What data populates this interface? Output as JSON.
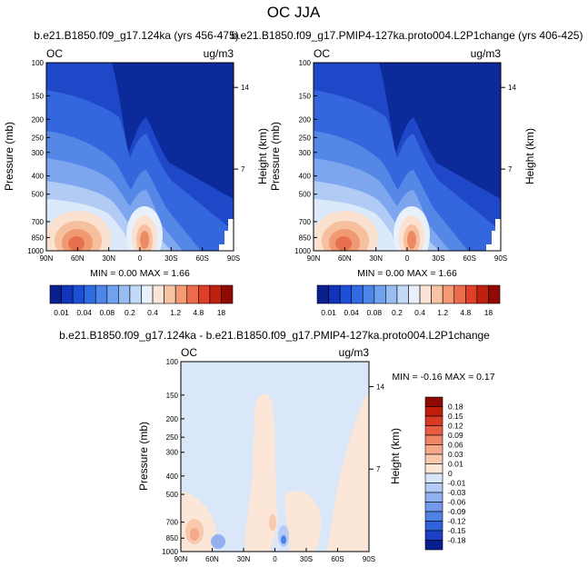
{
  "page_title": "OC JJA",
  "charts": {
    "left": {
      "title": "b.e21.B1850.f09_g17.124ka (yrs 456-475)",
      "variable": "OC",
      "units": "ug/m3",
      "ylabel": "Pressure (mb)",
      "y2label": "Height (km)",
      "minmax": "MIN =   0.00   MAX =   1.66"
    },
    "right": {
      "title": "b.e21.B1850.f09_g17.PMIP4-127ka.proto004.L2P1change (yrs 406-425)",
      "variable": "OC",
      "units": "ug/m3",
      "ylabel": "Pressure (mb)",
      "y2label": "Height (km)",
      "minmax": "MIN =   0.00   MAX =   1.66"
    },
    "diff": {
      "title": "b.e21.B1850.f09_g17.124ka - b.e21.B1850.f09_g17.PMIP4-127ka.proto004.L2P1change",
      "variable": "OC",
      "units": "ug/m3",
      "ylabel": "Pressure (mb)",
      "y2label": "Height (km)",
      "minmax": "MIN =  -0.16   MAX =   0.17"
    }
  },
  "chart_data": [
    {
      "type": "contour",
      "panel": "left",
      "x_ticks": [
        "90N",
        "60N",
        "30N",
        "0",
        "30S",
        "60S",
        "90S"
      ],
      "y_ticks": [
        100,
        150,
        200,
        250,
        300,
        400,
        500,
        700,
        850,
        1000
      ],
      "y2_ticks": [
        14,
        7
      ],
      "ylim": [
        1000,
        100
      ],
      "min": 0.0,
      "max": 1.66
    },
    {
      "type": "contour",
      "panel": "right",
      "x_ticks": [
        "90N",
        "60N",
        "30N",
        "0",
        "30S",
        "60S",
        "90S"
      ],
      "y_ticks": [
        100,
        150,
        200,
        250,
        300,
        400,
        500,
        700,
        850,
        1000
      ],
      "y2_ticks": [
        14,
        7
      ],
      "ylim": [
        1000,
        100
      ],
      "min": 0.0,
      "max": 1.66
    },
    {
      "type": "contour",
      "panel": "diff",
      "x_ticks": [
        "90N",
        "60N",
        "30N",
        "0",
        "30S",
        "60S",
        "90S"
      ],
      "y_ticks": [
        100,
        150,
        200,
        250,
        300,
        400,
        500,
        700,
        850,
        1000
      ],
      "y2_ticks": [
        14,
        7
      ],
      "ylim": [
        1000,
        100
      ],
      "min": -0.16,
      "max": 0.17
    }
  ],
  "colorbar_top": {
    "colors": [
      "#0a1f8f",
      "#1234b8",
      "#1a4fd6",
      "#2f6be2",
      "#4c86ea",
      "#6fa1ef",
      "#98bdf4",
      "#c3d9f8",
      "#e8f1fb",
      "#fbe4d6",
      "#f8c3a4",
      "#f39a75",
      "#ec6d4c",
      "#dd4027",
      "#c0200e",
      "#8f0a02"
    ],
    "labels": [
      "0.01",
      "0.04",
      "0.08",
      "0.2",
      "0.4",
      "1.2",
      "4.8",
      "18"
    ]
  },
  "colorbar_diff": {
    "colors": [
      "#0a1f8f",
      "#1a3fc9",
      "#2f63dc",
      "#4f82e6",
      "#7299ed",
      "#93b1f1",
      "#b5cbf5",
      "#d7e5fa",
      "#fbe6d8",
      "#f9c9ae",
      "#f5a98a",
      "#ef8566",
      "#e75e42",
      "#d93a22",
      "#bf1e0c",
      "#8f0a02"
    ],
    "labels": [
      "0.18",
      "0.15",
      "0.12",
      "0.09",
      "0.06",
      "0.03",
      "0.01",
      "0",
      "-0.01",
      "-0.03",
      "-0.06",
      "-0.09",
      "-0.12",
      "-0.15",
      "-0.18"
    ]
  }
}
